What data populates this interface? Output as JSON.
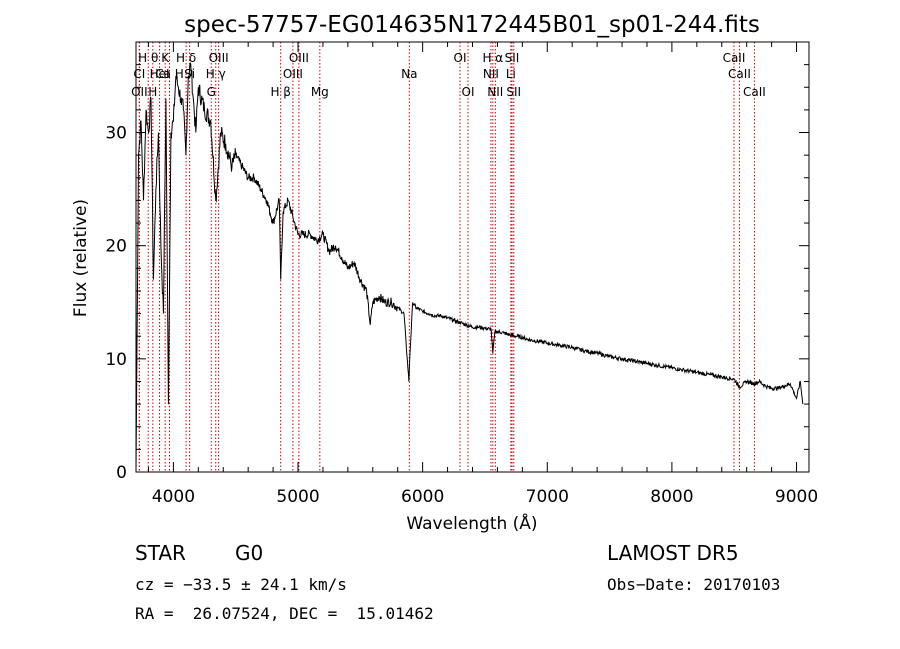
{
  "chart_data": {
    "type": "line",
    "title": "spec-57757-EG014635N172445B01_sp01-244.fits",
    "xlabel": "Wavelength (Å)",
    "ylabel": "Flux (relative)",
    "xlim": [
      3700,
      9100
    ],
    "ylim": [
      0,
      38
    ],
    "xticks": [
      4000,
      5000,
      6000,
      7000,
      8000,
      9000
    ],
    "yticks": [
      0,
      10,
      20,
      30
    ],
    "grid": false,
    "series": [
      {
        "x": [
          3700,
          3720,
          3740,
          3760,
          3780,
          3800,
          3820,
          3840,
          3860,
          3880,
          3900,
          3920,
          3940,
          3960,
          3980,
          4000,
          4020,
          4040,
          4060,
          4080,
          4100,
          4120,
          4140,
          4160,
          4180,
          4200,
          4250,
          4300,
          4340,
          4380,
          4420,
          4470,
          4500,
          4550,
          4600,
          4650,
          4700,
          4750,
          4800,
          4850,
          4861,
          4880,
          4920,
          4960,
          5000,
          5050,
          5100,
          5150,
          5200,
          5250,
          5300,
          5350,
          5400,
          5450,
          5500,
          5550,
          5580,
          5600,
          5650,
          5700,
          5750,
          5800,
          5850,
          5890,
          5896,
          5920,
          5950,
          6000,
          6050,
          6100,
          6150,
          6200,
          6250,
          6300,
          6350,
          6400,
          6450,
          6500,
          6550,
          6563,
          6580,
          6600,
          6650,
          6700,
          6750,
          6800,
          6850,
          6900,
          7000,
          7100,
          7200,
          7300,
          7400,
          7500,
          7600,
          7700,
          7800,
          7900,
          8000,
          8100,
          8200,
          8300,
          8400,
          8500,
          8542,
          8600,
          8662,
          8700,
          8750,
          8800,
          8850,
          8900,
          8950,
          9000,
          9030,
          9050
        ],
        "values": [
          0,
          28,
          31,
          24,
          32,
          30,
          33,
          17,
          25,
          30,
          20,
          14,
          33,
          6,
          30,
          31,
          35,
          34,
          33,
          32,
          28,
          35,
          36,
          33,
          30,
          34,
          32,
          31,
          24,
          30,
          29,
          27,
          28,
          27,
          26,
          26,
          25,
          24,
          22,
          24,
          17,
          23,
          24,
          22.5,
          21,
          21,
          21,
          20.5,
          21,
          19.5,
          20,
          19,
          18,
          18.5,
          17,
          16,
          13,
          15,
          15.5,
          15,
          15,
          14.5,
          14,
          8,
          10,
          15,
          14.5,
          14.2,
          14,
          13.8,
          13.8,
          13.6,
          13.4,
          13.2,
          13,
          12.8,
          12.8,
          12.7,
          12.6,
          10.5,
          12.4,
          12.4,
          12.3,
          12.1,
          12,
          11.9,
          11.7,
          11.6,
          11.4,
          11.2,
          11,
          10.7,
          10.5,
          10.2,
          10,
          9.8,
          9.6,
          9.4,
          9.2,
          9,
          8.8,
          8.6,
          8.4,
          8.2,
          7.5,
          8,
          7.8,
          8,
          7.6,
          7.4,
          7.4,
          7.6,
          7.8,
          6.5,
          8,
          6
        ]
      }
    ],
    "lines": [
      {
        "label": "Ca H",
        "wavelength": 3969,
        "row": 2
      },
      {
        "label": "H θ",
        "wavelength": 3798,
        "row": 1
      },
      {
        "label": "K",
        "wavelength": 3934,
        "row": 1
      },
      {
        "label": "H δ",
        "wavelength": 4102,
        "row": 1
      },
      {
        "label": "OIII",
        "wavelength": 4363,
        "row": 1
      },
      {
        "label": "OIII",
        "wavelength": 5007,
        "row": 1
      },
      {
        "label": "OI",
        "wavelength": 6300,
        "row": 1
      },
      {
        "label": "H α",
        "wavelength": 6563,
        "row": 1
      },
      {
        "label": "SII",
        "wavelength": 6717,
        "row": 1
      },
      {
        "label": "CaII",
        "wavelength": 8498,
        "row": 1
      },
      {
        "label": "CI",
        "wavelength": 3727,
        "row": 2
      },
      {
        "label": "HeI",
        "wavelength": 3889,
        "row": 2
      },
      {
        "label": "Si",
        "wavelength": 4130,
        "row": 2
      },
      {
        "label": "H γ",
        "wavelength": 4340,
        "row": 2
      },
      {
        "label": "OIII",
        "wavelength": 4959,
        "row": 2
      },
      {
        "label": "Na",
        "wavelength": 5893,
        "row": 2
      },
      {
        "label": "NII",
        "wavelength": 6548,
        "row": 2
      },
      {
        "label": "Li",
        "wavelength": 6708,
        "row": 2
      },
      {
        "label": "CaII",
        "wavelength": 8542,
        "row": 2
      },
      {
        "label": "OII",
        "wavelength": 3727,
        "row": 3
      },
      {
        "label": "H",
        "wavelength": 3835,
        "row": 3
      },
      {
        "label": "G",
        "wavelength": 4304,
        "row": 3
      },
      {
        "label": "H β",
        "wavelength": 4861,
        "row": 3
      },
      {
        "label": "Mg",
        "wavelength": 5175,
        "row": 3
      },
      {
        "label": "OI",
        "wavelength": 6364,
        "row": 3
      },
      {
        "label": "NII",
        "wavelength": 6583,
        "row": 3
      },
      {
        "label": "SII",
        "wavelength": 6731,
        "row": 3
      },
      {
        "label": "CaII",
        "wavelength": 8662,
        "row": 3
      }
    ]
  },
  "info": {
    "class": "STAR",
    "subclass": "G0",
    "survey": "LAMOST DR5",
    "cz": "cz = −33.5 ± 24.1 km/s",
    "obs_date": "Obs−Date: 20170103",
    "coords": "RA =  26.07524, DEC =  15.01462"
  },
  "colors": {
    "spectrum": "#000000",
    "line_markers": "#cc0000",
    "axes": "#000000"
  }
}
